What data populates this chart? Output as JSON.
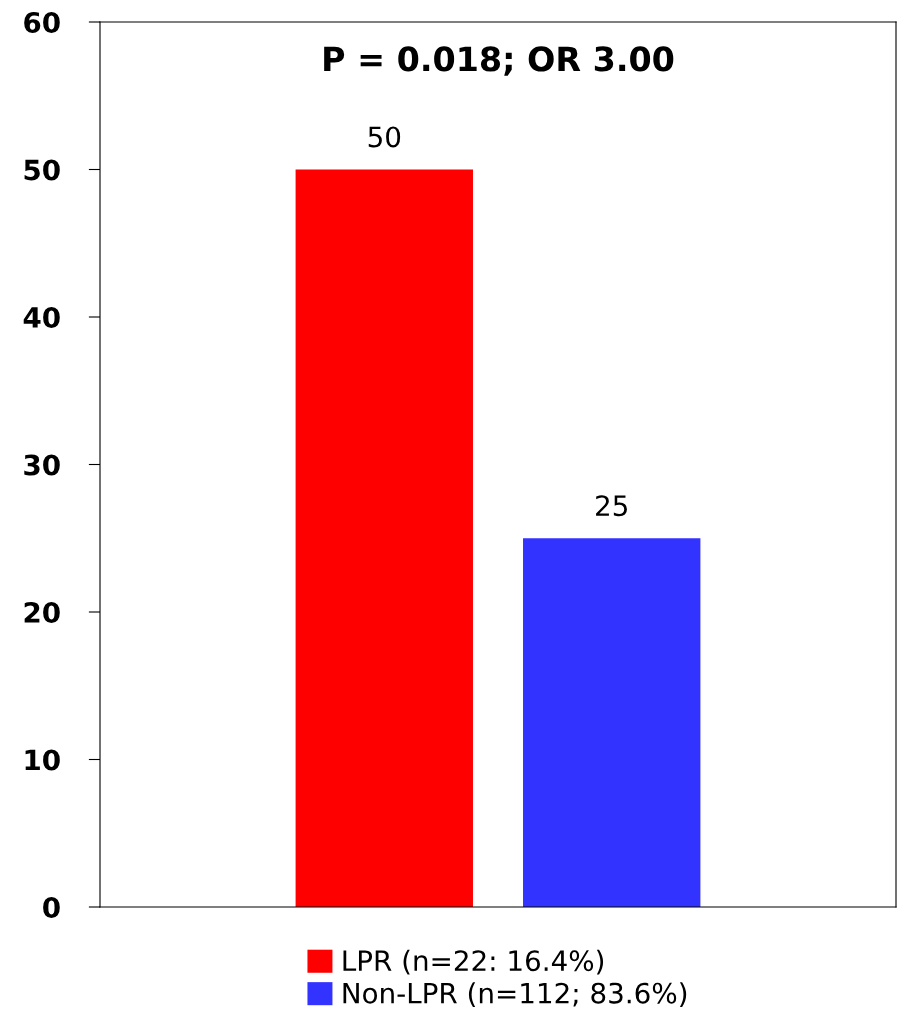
{
  "chart_data": {
    "type": "bar",
    "categories": [
      null,
      null
    ],
    "series": [
      {
        "name": "LPR (n=22: 16.4%)",
        "color": "#ff0000",
        "values": [
          50,
          null
        ]
      },
      {
        "name": "Non-LPR (n=112; 83.6%)",
        "color": "#3333ff",
        "values": [
          null,
          25
        ]
      }
    ],
    "ylim": [
      0,
      60
    ],
    "yticks": [
      0,
      10,
      20,
      30,
      40,
      50,
      60
    ],
    "grid": false,
    "legend": "bottom",
    "data_labels": true,
    "annotations": [
      "P = 0.018; OR 3.00"
    ]
  }
}
